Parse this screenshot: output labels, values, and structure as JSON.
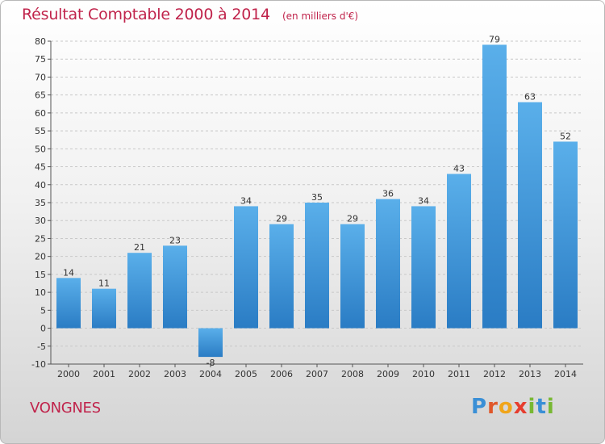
{
  "title": "Résultat Comptable 2000 à 2014",
  "subtitle": "(en milliers d'€)",
  "town": "VONGNES",
  "logo": {
    "text": "Proxiti",
    "letters": [
      "P",
      "r",
      "o",
      "x",
      "i",
      "t",
      "i"
    ]
  },
  "colors": {
    "title": "#c0234b",
    "bar_light": "#5aafea",
    "bar_dark": "#2a7cc4",
    "grid": "#cccccc"
  },
  "chart_data": {
    "type": "bar",
    "categories": [
      "2000",
      "2001",
      "2002",
      "2003",
      "2004",
      "2005",
      "2006",
      "2007",
      "2008",
      "2009",
      "2010",
      "2011",
      "2012",
      "2013",
      "2014"
    ],
    "values": [
      14,
      11,
      21,
      23,
      -8,
      34,
      29,
      35,
      29,
      36,
      34,
      43,
      79,
      63,
      52
    ],
    "value_labels": [
      "14",
      "11",
      "21",
      "23",
      "-8",
      "34",
      "29",
      "35",
      "29",
      "36",
      "34",
      "43",
      "79",
      "63",
      "52"
    ],
    "y_ticks": [
      80,
      75,
      70,
      65,
      60,
      55,
      50,
      45,
      40,
      35,
      30,
      25,
      20,
      15,
      10,
      5,
      0,
      -5,
      -10
    ],
    "ylim": [
      -10,
      80
    ],
    "grid": "horizontal dashed",
    "title": "Résultat Comptable 2000 à 2014",
    "xlabel": "",
    "ylabel": ""
  }
}
